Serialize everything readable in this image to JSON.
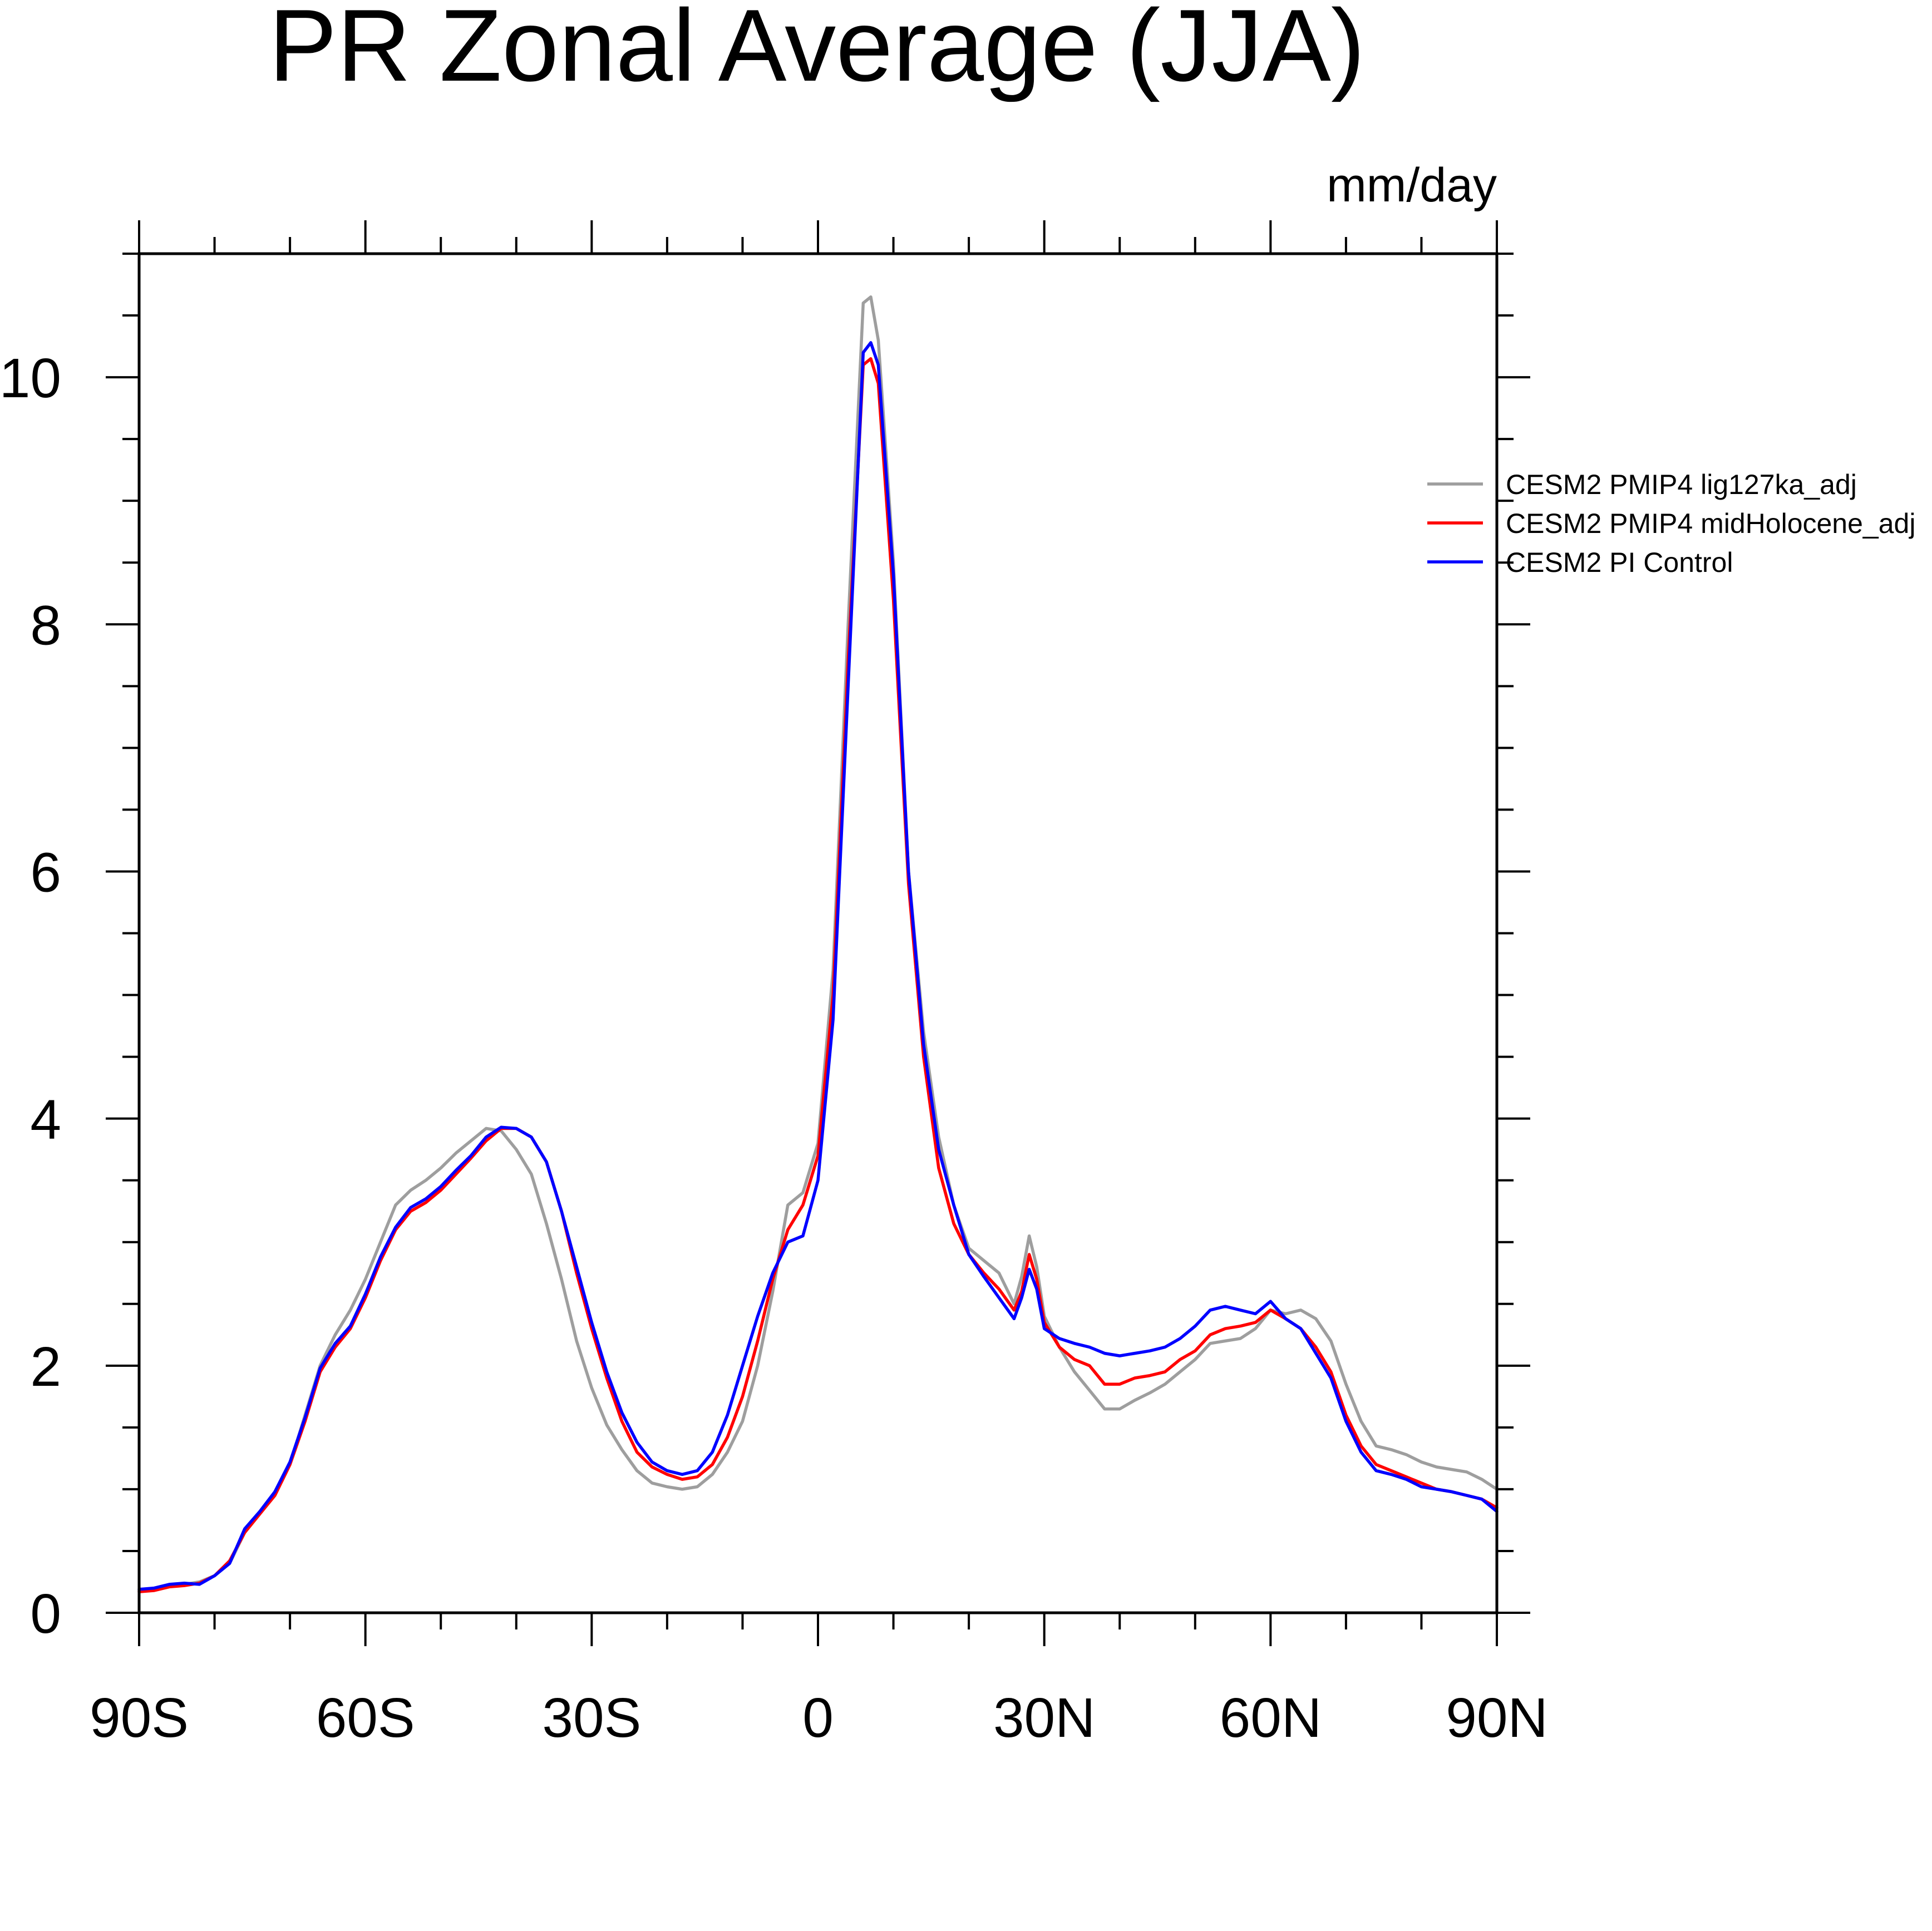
{
  "chart_data": {
    "type": "line",
    "title": "PR Zonal Average (JJA)",
    "units_label": "mm/day",
    "xlabel": "",
    "ylabel": "",
    "xlim": [
      -90,
      90
    ],
    "ylim": [
      0,
      11
    ],
    "x_ticks": [
      {
        "value": -90,
        "label": "90S"
      },
      {
        "value": -60,
        "label": "60S"
      },
      {
        "value": -30,
        "label": "30S"
      },
      {
        "value": 0,
        "label": "0"
      },
      {
        "value": 30,
        "label": "30N"
      },
      {
        "value": 60,
        "label": "60N"
      },
      {
        "value": 90,
        "label": "90N"
      }
    ],
    "y_ticks": [
      {
        "value": 0,
        "label": "0"
      },
      {
        "value": 2,
        "label": "2"
      },
      {
        "value": 4,
        "label": "4"
      },
      {
        "value": 6,
        "label": "6"
      },
      {
        "value": 8,
        "label": "8"
      },
      {
        "value": 10,
        "label": "10"
      }
    ],
    "legend_position": "right",
    "series": [
      {
        "name": "CESM2 PMIP4 lig127ka_adj",
        "color": "#9e9e9e",
        "points": [
          [
            -90,
            0.18
          ],
          [
            -88,
            0.2
          ],
          [
            -86,
            0.22
          ],
          [
            -84,
            0.23
          ],
          [
            -82,
            0.25
          ],
          [
            -80,
            0.3
          ],
          [
            -78,
            0.4
          ],
          [
            -76,
            0.65
          ],
          [
            -74,
            0.8
          ],
          [
            -72,
            0.95
          ],
          [
            -70,
            1.2
          ],
          [
            -68,
            1.6
          ],
          [
            -66,
            2.0
          ],
          [
            -64,
            2.25
          ],
          [
            -62,
            2.45
          ],
          [
            -60,
            2.7
          ],
          [
            -58,
            3.0
          ],
          [
            -56,
            3.3
          ],
          [
            -54,
            3.42
          ],
          [
            -52,
            3.5
          ],
          [
            -50,
            3.6
          ],
          [
            -48,
            3.72
          ],
          [
            -46,
            3.82
          ],
          [
            -44,
            3.92
          ],
          [
            -42,
            3.9
          ],
          [
            -40,
            3.75
          ],
          [
            -38,
            3.55
          ],
          [
            -36,
            3.15
          ],
          [
            -34,
            2.7
          ],
          [
            -32,
            2.2
          ],
          [
            -30,
            1.82
          ],
          [
            -28,
            1.52
          ],
          [
            -26,
            1.32
          ],
          [
            -24,
            1.15
          ],
          [
            -22,
            1.05
          ],
          [
            -20,
            1.02
          ],
          [
            -18,
            1.0
          ],
          [
            -16,
            1.02
          ],
          [
            -14,
            1.12
          ],
          [
            -12,
            1.3
          ],
          [
            -10,
            1.55
          ],
          [
            -8,
            2.0
          ],
          [
            -6,
            2.6
          ],
          [
            -4,
            3.3
          ],
          [
            -2,
            3.4
          ],
          [
            0,
            3.8
          ],
          [
            2,
            5.2
          ],
          [
            4,
            8.0
          ],
          [
            6,
            10.6
          ],
          [
            7,
            10.65
          ],
          [
            8,
            10.3
          ],
          [
            10,
            8.5
          ],
          [
            12,
            6.0
          ],
          [
            14,
            4.7
          ],
          [
            16,
            3.85
          ],
          [
            18,
            3.3
          ],
          [
            20,
            2.95
          ],
          [
            22,
            2.85
          ],
          [
            24,
            2.75
          ],
          [
            26,
            2.5
          ],
          [
            27,
            2.72
          ],
          [
            28,
            3.05
          ],
          [
            29,
            2.8
          ],
          [
            30,
            2.4
          ],
          [
            32,
            2.15
          ],
          [
            34,
            1.95
          ],
          [
            36,
            1.8
          ],
          [
            38,
            1.65
          ],
          [
            40,
            1.65
          ],
          [
            42,
            1.72
          ],
          [
            44,
            1.78
          ],
          [
            46,
            1.85
          ],
          [
            48,
            1.95
          ],
          [
            50,
            2.05
          ],
          [
            52,
            2.18
          ],
          [
            54,
            2.2
          ],
          [
            56,
            2.22
          ],
          [
            58,
            2.3
          ],
          [
            60,
            2.45
          ],
          [
            62,
            2.42
          ],
          [
            64,
            2.45
          ],
          [
            66,
            2.38
          ],
          [
            68,
            2.2
          ],
          [
            70,
            1.85
          ],
          [
            72,
            1.55
          ],
          [
            74,
            1.35
          ],
          [
            76,
            1.32
          ],
          [
            78,
            1.28
          ],
          [
            80,
            1.22
          ],
          [
            82,
            1.18
          ],
          [
            84,
            1.16
          ],
          [
            86,
            1.14
          ],
          [
            88,
            1.08
          ],
          [
            90,
            1.0
          ]
        ]
      },
      {
        "name": "CESM2 PMIP4 midHolocene_adj",
        "color": "#ff0000",
        "points": [
          [
            -90,
            0.17
          ],
          [
            -88,
            0.18
          ],
          [
            -86,
            0.21
          ],
          [
            -84,
            0.22
          ],
          [
            -82,
            0.24
          ],
          [
            -80,
            0.3
          ],
          [
            -78,
            0.42
          ],
          [
            -76,
            0.65
          ],
          [
            -74,
            0.8
          ],
          [
            -72,
            0.95
          ],
          [
            -70,
            1.2
          ],
          [
            -68,
            1.55
          ],
          [
            -66,
            1.95
          ],
          [
            -64,
            2.15
          ],
          [
            -62,
            2.3
          ],
          [
            -60,
            2.55
          ],
          [
            -58,
            2.85
          ],
          [
            -56,
            3.1
          ],
          [
            -54,
            3.25
          ],
          [
            -52,
            3.32
          ],
          [
            -50,
            3.42
          ],
          [
            -48,
            3.55
          ],
          [
            -46,
            3.68
          ],
          [
            -44,
            3.82
          ],
          [
            -42,
            3.92
          ],
          [
            -40,
            3.92
          ],
          [
            -38,
            3.85
          ],
          [
            -36,
            3.65
          ],
          [
            -34,
            3.25
          ],
          [
            -32,
            2.75
          ],
          [
            -30,
            2.3
          ],
          [
            -28,
            1.9
          ],
          [
            -26,
            1.55
          ],
          [
            -24,
            1.3
          ],
          [
            -22,
            1.18
          ],
          [
            -20,
            1.12
          ],
          [
            -18,
            1.08
          ],
          [
            -16,
            1.1
          ],
          [
            -14,
            1.2
          ],
          [
            -12,
            1.42
          ],
          [
            -10,
            1.75
          ],
          [
            -8,
            2.2
          ],
          [
            -6,
            2.7
          ],
          [
            -4,
            3.1
          ],
          [
            -2,
            3.3
          ],
          [
            0,
            3.7
          ],
          [
            2,
            5.0
          ],
          [
            4,
            7.7
          ],
          [
            6,
            10.1
          ],
          [
            7,
            10.15
          ],
          [
            8,
            9.95
          ],
          [
            10,
            8.2
          ],
          [
            12,
            5.9
          ],
          [
            14,
            4.5
          ],
          [
            16,
            3.6
          ],
          [
            18,
            3.15
          ],
          [
            20,
            2.9
          ],
          [
            22,
            2.75
          ],
          [
            24,
            2.62
          ],
          [
            26,
            2.45
          ],
          [
            27,
            2.6
          ],
          [
            28,
            2.9
          ],
          [
            29,
            2.7
          ],
          [
            30,
            2.35
          ],
          [
            32,
            2.15
          ],
          [
            34,
            2.05
          ],
          [
            36,
            2.0
          ],
          [
            38,
            1.85
          ],
          [
            40,
            1.85
          ],
          [
            42,
            1.9
          ],
          [
            44,
            1.92
          ],
          [
            46,
            1.95
          ],
          [
            48,
            2.05
          ],
          [
            50,
            2.12
          ],
          [
            52,
            2.25
          ],
          [
            54,
            2.3
          ],
          [
            56,
            2.32
          ],
          [
            58,
            2.35
          ],
          [
            60,
            2.45
          ],
          [
            62,
            2.38
          ],
          [
            64,
            2.3
          ],
          [
            66,
            2.15
          ],
          [
            68,
            1.95
          ],
          [
            70,
            1.6
          ],
          [
            72,
            1.35
          ],
          [
            74,
            1.2
          ],
          [
            76,
            1.15
          ],
          [
            78,
            1.1
          ],
          [
            80,
            1.05
          ],
          [
            82,
            1.0
          ],
          [
            84,
            0.98
          ],
          [
            86,
            0.95
          ],
          [
            88,
            0.92
          ],
          [
            90,
            0.85
          ]
        ]
      },
      {
        "name": "CESM2 PI Control",
        "color": "#0000ff",
        "points": [
          [
            -90,
            0.19
          ],
          [
            -88,
            0.2
          ],
          [
            -86,
            0.23
          ],
          [
            -84,
            0.24
          ],
          [
            -82,
            0.23
          ],
          [
            -80,
            0.3
          ],
          [
            -78,
            0.4
          ],
          [
            -76,
            0.68
          ],
          [
            -74,
            0.82
          ],
          [
            -72,
            0.98
          ],
          [
            -70,
            1.22
          ],
          [
            -68,
            1.58
          ],
          [
            -66,
            1.98
          ],
          [
            -64,
            2.18
          ],
          [
            -62,
            2.32
          ],
          [
            -60,
            2.58
          ],
          [
            -58,
            2.88
          ],
          [
            -56,
            3.12
          ],
          [
            -54,
            3.28
          ],
          [
            -52,
            3.35
          ],
          [
            -50,
            3.45
          ],
          [
            -48,
            3.58
          ],
          [
            -46,
            3.7
          ],
          [
            -44,
            3.85
          ],
          [
            -42,
            3.93
          ],
          [
            -40,
            3.92
          ],
          [
            -38,
            3.85
          ],
          [
            -36,
            3.65
          ],
          [
            -34,
            3.25
          ],
          [
            -32,
            2.8
          ],
          [
            -30,
            2.35
          ],
          [
            -28,
            1.95
          ],
          [
            -26,
            1.62
          ],
          [
            -24,
            1.38
          ],
          [
            -22,
            1.22
          ],
          [
            -20,
            1.15
          ],
          [
            -18,
            1.12
          ],
          [
            -16,
            1.15
          ],
          [
            -14,
            1.3
          ],
          [
            -12,
            1.6
          ],
          [
            -10,
            2.0
          ],
          [
            -8,
            2.4
          ],
          [
            -6,
            2.75
          ],
          [
            -4,
            3.0
          ],
          [
            -2,
            3.05
          ],
          [
            0,
            3.5
          ],
          [
            2,
            4.8
          ],
          [
            4,
            7.5
          ],
          [
            6,
            10.2
          ],
          [
            7,
            10.28
          ],
          [
            8,
            10.1
          ],
          [
            10,
            8.4
          ],
          [
            12,
            6.0
          ],
          [
            14,
            4.6
          ],
          [
            16,
            3.75
          ],
          [
            18,
            3.3
          ],
          [
            20,
            2.9
          ],
          [
            22,
            2.72
          ],
          [
            24,
            2.55
          ],
          [
            26,
            2.38
          ],
          [
            27,
            2.55
          ],
          [
            28,
            2.78
          ],
          [
            29,
            2.62
          ],
          [
            30,
            2.3
          ],
          [
            32,
            2.22
          ],
          [
            34,
            2.18
          ],
          [
            36,
            2.15
          ],
          [
            38,
            2.1
          ],
          [
            40,
            2.08
          ],
          [
            42,
            2.1
          ],
          [
            44,
            2.12
          ],
          [
            46,
            2.15
          ],
          [
            48,
            2.22
          ],
          [
            50,
            2.32
          ],
          [
            52,
            2.45
          ],
          [
            54,
            2.48
          ],
          [
            56,
            2.45
          ],
          [
            58,
            2.42
          ],
          [
            60,
            2.52
          ],
          [
            62,
            2.38
          ],
          [
            64,
            2.3
          ],
          [
            66,
            2.1
          ],
          [
            68,
            1.9
          ],
          [
            70,
            1.55
          ],
          [
            72,
            1.3
          ],
          [
            74,
            1.15
          ],
          [
            76,
            1.12
          ],
          [
            78,
            1.08
          ],
          [
            80,
            1.02
          ],
          [
            82,
            1.0
          ],
          [
            84,
            0.98
          ],
          [
            86,
            0.95
          ],
          [
            88,
            0.92
          ],
          [
            90,
            0.82
          ]
        ]
      }
    ]
  }
}
